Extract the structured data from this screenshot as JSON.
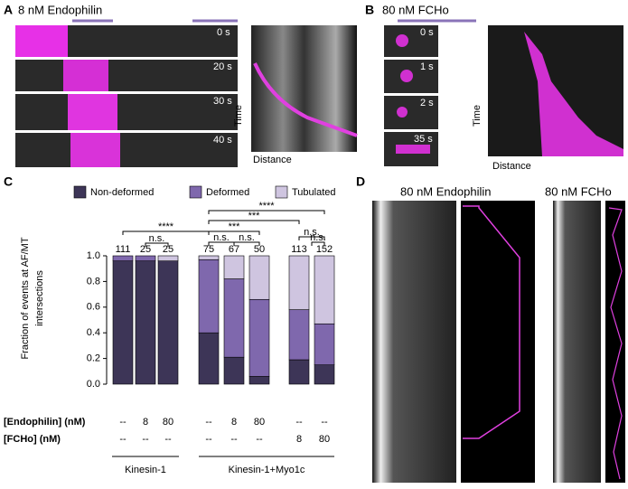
{
  "panels": {
    "a": {
      "label": "A",
      "title": "8 nM Endophilin",
      "times": [
        "0 s",
        "20 s",
        "30 s",
        "40 s"
      ],
      "time_label": "Time",
      "distance_label": "Distance"
    },
    "b": {
      "label": "B",
      "title": "80 nM FCHo",
      "times": [
        "0 s",
        "1 s",
        "2 s",
        "35 s"
      ],
      "time_label": "Time",
      "distance_label": "Distance"
    },
    "c": {
      "label": "C"
    },
    "d": {
      "label": "D",
      "titles": [
        "80 nM Endophilin",
        "80 nM FCHo"
      ]
    }
  },
  "chart_data": {
    "type": "stacked_bar",
    "y_label": [
      "Fraction of events at AF/MT",
      "intersections"
    ],
    "ylim": [
      0,
      1
    ],
    "yticks": [
      {
        "value": 0,
        "label": "0.0"
      },
      0.2,
      0.4,
      0.6,
      0.8,
      {
        "value": 1,
        "label": "1.0"
      }
    ],
    "series": [
      {
        "name": "Non-deformed",
        "color": "#3d3557",
        "values": [
          0.96,
          0.96,
          0.96,
          0.4,
          0.21,
          0.06,
          0.19,
          0.15
        ]
      },
      {
        "name": "Deformed",
        "color": "#7f68ad",
        "values": [
          0.04,
          0.04,
          0,
          0.57,
          0.61,
          0.6,
          0.39,
          0.32
        ]
      },
      {
        "name": "Tubulated",
        "color": "#cfc5e0",
        "values": [
          0,
          0,
          0.04,
          0.03,
          0.18,
          0.34,
          0.42,
          0.53
        ]
      }
    ],
    "counts": [
      111,
      25,
      25,
      75,
      67,
      50,
      113,
      152
    ],
    "row_labels": [
      "[Endophilin] (nM)",
      "[FCHo] (nM)"
    ],
    "rows": [
      [
        "--",
        "8",
        "80",
        "--",
        "8",
        "80",
        "--",
        "--"
      ],
      [
        "--",
        "--",
        "--",
        "--",
        "--",
        "--",
        "8",
        "80"
      ]
    ],
    "groups": [
      "Kinesin-1",
      "Kinesin-1+Myo1c"
    ],
    "annotations": [
      "****",
      "n.s.",
      "****",
      "***",
      "***",
      "n.s.",
      "n.s.",
      "n.s.",
      "n.s."
    ]
  }
}
